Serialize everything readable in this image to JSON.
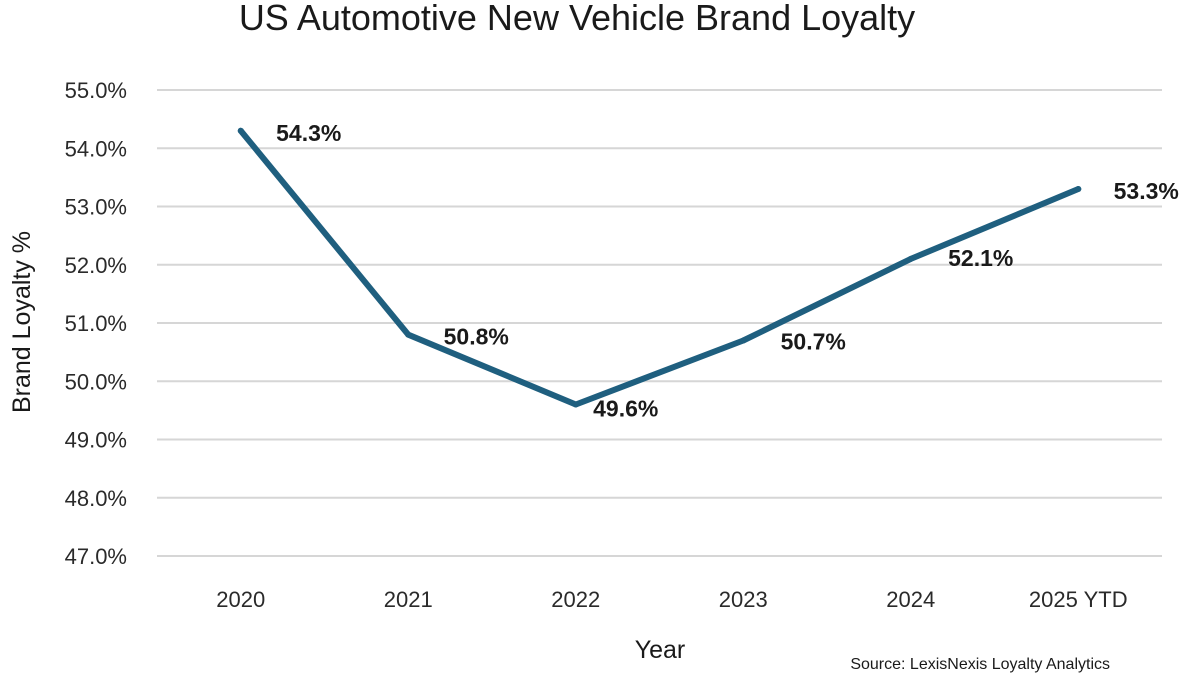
{
  "chart_data": {
    "type": "line",
    "title": "US Automotive New Vehicle Brand Loyalty",
    "xlabel": "Year",
    "ylabel": "Brand Loyalty %",
    "categories": [
      "2020",
      "2021",
      "2022",
      "2023",
      "2024",
      "2025 YTD"
    ],
    "series": [
      {
        "name": "Brand Loyalty",
        "values": [
          54.3,
          50.8,
          49.6,
          50.7,
          52.1,
          53.3
        ],
        "data_labels": [
          "54.3%",
          "50.8%",
          "49.6%",
          "50.7%",
          "52.1%",
          "53.3%"
        ],
        "color": "#1f5f7f"
      }
    ],
    "ylim": [
      47.0,
      55.0
    ],
    "yticks": [
      47.0,
      48.0,
      49.0,
      50.0,
      51.0,
      52.0,
      53.0,
      54.0,
      55.0
    ],
    "ytick_labels": [
      "47.0%",
      "48.0%",
      "49.0%",
      "50.0%",
      "51.0%",
      "52.0%",
      "53.0%",
      "54.0%",
      "55.0%"
    ],
    "grid": true,
    "legend": "none",
    "source": "Source:  LexisNexis Loyalty Analytics"
  }
}
